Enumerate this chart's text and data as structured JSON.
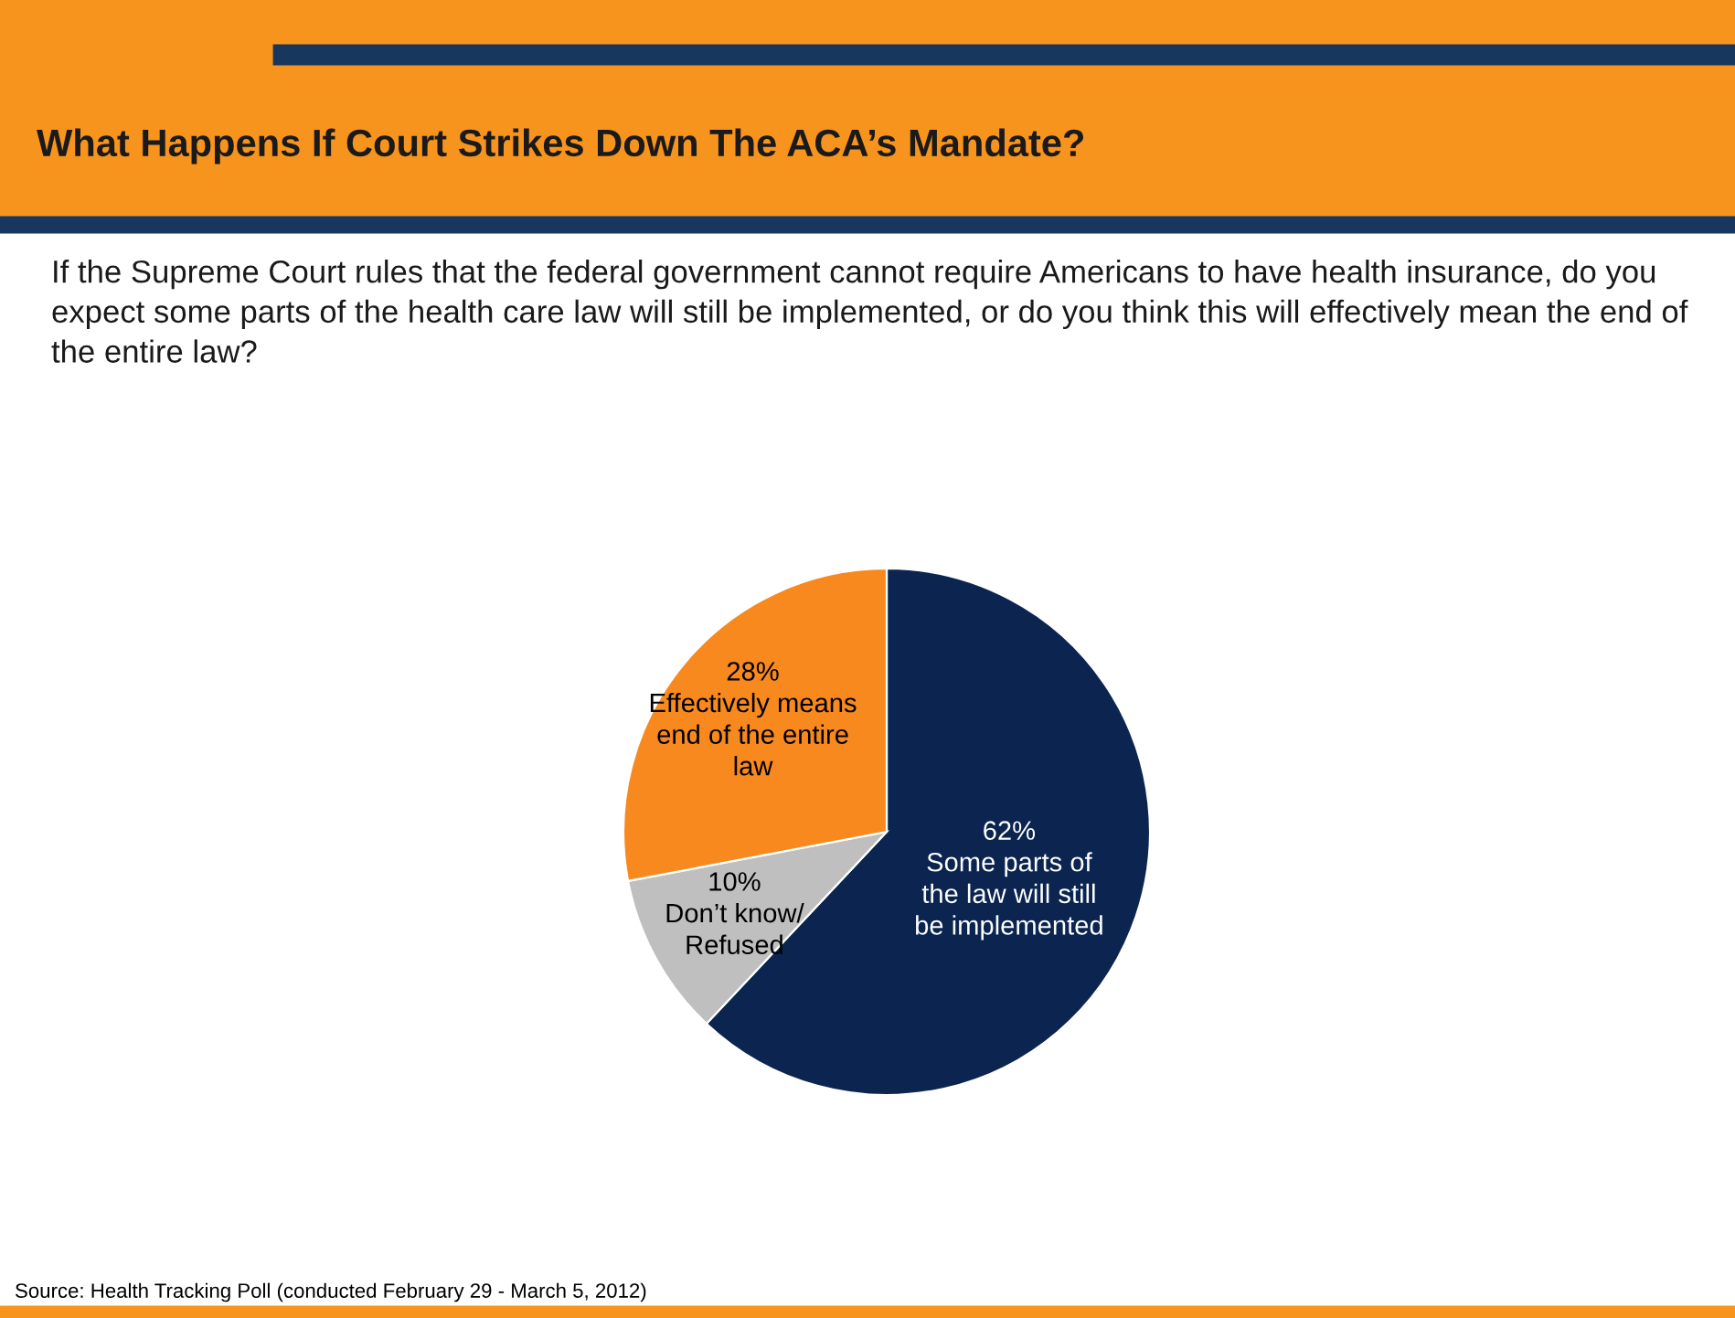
{
  "chart_data": {
    "type": "pie",
    "title": "What Happens If Court Strikes Down The ACA’s Mandate?",
    "subtitle": "If the Supreme Court rules that the federal government cannot require Americans to have health insurance, do you expect some parts of the health care law will still be implemented, or do you think this will effectively mean the end of the entire law?",
    "categories": [
      "Some parts of\nthe law will still\nbe implemented",
      "Don’t know/\nRefused",
      "Effectively means\nend of the entire\nlaw"
    ],
    "values": [
      62,
      10,
      28
    ],
    "value_labels": [
      "62%",
      "10%",
      "28%"
    ],
    "colors": [
      "#0b2550",
      "#bfbfbf",
      "#f7891f"
    ],
    "annotations": [
      "Source: Health Tracking Poll (conducted February 29 - March 5, 2012)"
    ]
  }
}
